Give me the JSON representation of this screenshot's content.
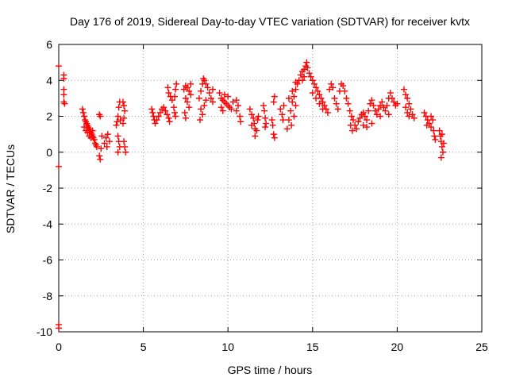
{
  "chart_data": {
    "type": "scatter",
    "title": "Day 176 of 2019, Sidereal Day-to-day VTEC variation (SDTVAR) for receiver kvtx",
    "xlabel": "GPS time / hours",
    "ylabel": "SDTVAR / TECUs",
    "xlim": [
      0,
      25
    ],
    "ylim": [
      -10,
      6
    ],
    "xticks": [
      0,
      5,
      10,
      15,
      20,
      25
    ],
    "yticks": [
      -10,
      -8,
      -6,
      -4,
      -2,
      0,
      2,
      4,
      6
    ],
    "xtick_labels": [
      "0",
      "5",
      "10",
      "15",
      "20",
      "25"
    ],
    "ytick_labels": [
      "-10",
      "-8",
      "-6",
      "-4",
      "-2",
      "0",
      "2",
      "4",
      "6"
    ],
    "grid": true,
    "marker": "plus",
    "color": "#ff0000",
    "series": [
      {
        "name": "SDTVAR",
        "points": [
          [
            0.0,
            4.8
          ],
          [
            0.0,
            -0.8
          ],
          [
            0.0,
            -9.6
          ],
          [
            0.0,
            -9.8
          ],
          [
            0.3,
            4.3
          ],
          [
            0.3,
            4.1
          ],
          [
            0.3,
            3.5
          ],
          [
            0.3,
            3.2
          ],
          [
            0.3,
            2.8
          ],
          [
            0.35,
            2.7
          ],
          [
            1.4,
            2.4
          ],
          [
            1.45,
            2.2
          ],
          [
            1.5,
            2.0
          ],
          [
            1.55,
            1.8
          ],
          [
            1.6,
            1.7
          ],
          [
            1.65,
            1.6
          ],
          [
            1.7,
            1.5
          ],
          [
            1.75,
            1.4
          ],
          [
            1.8,
            1.3
          ],
          [
            1.85,
            1.2
          ],
          [
            1.9,
            1.1
          ],
          [
            1.95,
            1.0
          ],
          [
            2.0,
            0.9
          ],
          [
            2.05,
            0.8
          ],
          [
            2.1,
            0.7
          ],
          [
            2.15,
            0.5
          ],
          [
            2.2,
            0.4
          ],
          [
            2.25,
            0.3
          ],
          [
            1.5,
            1.4
          ],
          [
            1.6,
            1.2
          ],
          [
            1.7,
            1.1
          ],
          [
            1.8,
            0.9
          ],
          [
            1.9,
            0.8
          ],
          [
            2.0,
            1.2
          ],
          [
            2.4,
            2.1
          ],
          [
            2.45,
            2.0
          ],
          [
            2.4,
            -0.2
          ],
          [
            2.45,
            -0.4
          ],
          [
            2.5,
            0.2
          ],
          [
            2.55,
            0.9
          ],
          [
            2.7,
            0.5
          ],
          [
            2.8,
            0.8
          ],
          [
            2.9,
            1.0
          ],
          [
            3.0,
            0.6
          ],
          [
            2.85,
            0.3
          ],
          [
            3.4,
            1.5
          ],
          [
            3.45,
            1.7
          ],
          [
            3.5,
            2.0
          ],
          [
            3.55,
            2.5
          ],
          [
            3.6,
            2.8
          ],
          [
            3.5,
            0.9
          ],
          [
            3.55,
            0.6
          ],
          [
            3.6,
            0.3
          ],
          [
            3.5,
            0.0
          ],
          [
            3.65,
            1.8
          ],
          [
            3.8,
            2.8
          ],
          [
            3.85,
            2.6
          ],
          [
            3.9,
            2.3
          ],
          [
            3.85,
            1.9
          ],
          [
            3.8,
            1.6
          ],
          [
            3.85,
            0.6
          ],
          [
            3.9,
            0.3
          ],
          [
            3.95,
            0.0
          ],
          [
            5.5,
            2.4
          ],
          [
            5.55,
            2.2
          ],
          [
            5.6,
            2.0
          ],
          [
            5.65,
            1.8
          ],
          [
            5.7,
            1.6
          ],
          [
            5.8,
            1.8
          ],
          [
            5.9,
            2.0
          ],
          [
            6.0,
            2.2
          ],
          [
            6.1,
            2.4
          ],
          [
            6.2,
            2.5
          ],
          [
            6.3,
            2.3
          ],
          [
            6.4,
            2.1
          ],
          [
            6.5,
            1.9
          ],
          [
            6.55,
            1.7
          ],
          [
            6.45,
            3.6
          ],
          [
            6.5,
            3.3
          ],
          [
            6.6,
            3.1
          ],
          [
            6.7,
            2.9
          ],
          [
            6.8,
            2.5
          ],
          [
            6.85,
            2.2
          ],
          [
            6.9,
            2.0
          ],
          [
            6.95,
            3.8
          ],
          [
            6.9,
            3.5
          ],
          [
            6.85,
            3.1
          ],
          [
            7.4,
            3.5
          ],
          [
            7.5,
            3.7
          ],
          [
            7.6,
            3.6
          ],
          [
            7.7,
            3.4
          ],
          [
            7.8,
            3.2
          ],
          [
            7.5,
            3.0
          ],
          [
            7.6,
            2.8
          ],
          [
            7.7,
            2.5
          ],
          [
            7.45,
            2.2
          ],
          [
            7.5,
            1.9
          ],
          [
            7.8,
            3.8
          ],
          [
            8.3,
            3.0
          ],
          [
            8.4,
            3.4
          ],
          [
            8.5,
            3.8
          ],
          [
            8.55,
            4.1
          ],
          [
            8.6,
            4.0
          ],
          [
            8.7,
            3.8
          ],
          [
            8.8,
            3.6
          ],
          [
            8.9,
            3.3
          ],
          [
            9.0,
            3.0
          ],
          [
            9.1,
            2.8
          ],
          [
            8.4,
            2.4
          ],
          [
            8.5,
            2.1
          ],
          [
            8.6,
            2.6
          ],
          [
            8.7,
            2.9
          ],
          [
            9.1,
            3.5
          ],
          [
            8.35,
            1.8
          ],
          [
            9.5,
            3.3
          ],
          [
            9.6,
            3.0
          ],
          [
            9.7,
            2.9
          ],
          [
            9.8,
            2.8
          ],
          [
            9.9,
            2.7
          ],
          [
            10.0,
            2.6
          ],
          [
            10.1,
            2.5
          ],
          [
            10.2,
            2.4
          ],
          [
            9.6,
            2.5
          ],
          [
            9.7,
            2.3
          ],
          [
            9.8,
            3.2
          ],
          [
            10.0,
            3.1
          ],
          [
            10.3,
            2.8
          ],
          [
            10.5,
            2.9
          ],
          [
            10.6,
            2.6
          ],
          [
            10.5,
            2.3
          ],
          [
            10.7,
            2.0
          ],
          [
            10.75,
            1.7
          ],
          [
            11.3,
            2.4
          ],
          [
            11.4,
            2.1
          ],
          [
            11.5,
            1.9
          ],
          [
            11.55,
            1.6
          ],
          [
            11.6,
            1.3
          ],
          [
            11.6,
            0.9
          ],
          [
            11.7,
            1.2
          ],
          [
            11.75,
            1.8
          ],
          [
            11.8,
            2.0
          ],
          [
            11.4,
            1.5
          ],
          [
            12.1,
            2.6
          ],
          [
            12.15,
            2.3
          ],
          [
            12.2,
            1.9
          ],
          [
            12.25,
            1.6
          ],
          [
            12.2,
            1.4
          ],
          [
            12.6,
            1.8
          ],
          [
            12.65,
            1.5
          ],
          [
            12.7,
            1.0
          ],
          [
            12.75,
            0.8
          ],
          [
            12.7,
            2.8
          ],
          [
            12.75,
            3.1
          ],
          [
            13.1,
            2.4
          ],
          [
            13.2,
            2.1
          ],
          [
            13.25,
            1.8
          ],
          [
            13.3,
            2.6
          ],
          [
            13.5,
            1.3
          ],
          [
            13.6,
            1.8
          ],
          [
            13.7,
            2.3
          ],
          [
            13.8,
            2.8
          ],
          [
            13.9,
            3.1
          ],
          [
            14.0,
            3.5
          ],
          [
            14.1,
            3.8
          ],
          [
            14.0,
            2.6
          ],
          [
            13.9,
            2.0
          ],
          [
            13.75,
            1.5
          ],
          [
            13.6,
            3.0
          ],
          [
            13.8,
            3.4
          ],
          [
            14.0,
            3.9
          ],
          [
            14.2,
            4.0
          ],
          [
            14.3,
            4.3
          ],
          [
            14.4,
            4.5
          ],
          [
            14.5,
            4.6
          ],
          [
            14.6,
            4.8
          ],
          [
            14.65,
            5.0
          ],
          [
            14.5,
            4.2
          ],
          [
            14.4,
            4.0
          ],
          [
            14.7,
            4.7
          ],
          [
            14.8,
            4.4
          ],
          [
            14.9,
            4.2
          ],
          [
            15.0,
            4.0
          ],
          [
            15.1,
            3.8
          ],
          [
            15.2,
            3.6
          ],
          [
            15.3,
            3.4
          ],
          [
            15.4,
            3.2
          ],
          [
            15.5,
            3.0
          ],
          [
            15.6,
            2.8
          ],
          [
            15.7,
            2.6
          ],
          [
            15.8,
            2.4
          ],
          [
            15.9,
            2.2
          ],
          [
            15.0,
            3.3
          ],
          [
            15.2,
            3.0
          ],
          [
            15.4,
            2.7
          ],
          [
            15.6,
            2.4
          ],
          [
            16.0,
            3.5
          ],
          [
            16.1,
            3.8
          ],
          [
            16.2,
            3.6
          ],
          [
            16.3,
            3.0
          ],
          [
            16.4,
            2.7
          ],
          [
            16.5,
            2.4
          ],
          [
            16.6,
            3.4
          ],
          [
            16.7,
            3.8
          ],
          [
            16.8,
            3.7
          ],
          [
            16.9,
            3.4
          ],
          [
            17.0,
            3.0
          ],
          [
            17.1,
            2.7
          ],
          [
            17.2,
            2.3
          ],
          [
            17.3,
            2.0
          ],
          [
            17.4,
            1.8
          ],
          [
            17.5,
            1.5
          ],
          [
            17.35,
            1.2
          ],
          [
            17.25,
            1.5
          ],
          [
            17.7,
            1.7
          ],
          [
            17.8,
            1.9
          ],
          [
            17.9,
            2.1
          ],
          [
            18.0,
            2.2
          ],
          [
            18.1,
            2.0
          ],
          [
            18.2,
            1.8
          ],
          [
            18.3,
            2.3
          ],
          [
            18.4,
            2.7
          ],
          [
            18.5,
            2.9
          ],
          [
            18.6,
            2.6
          ],
          [
            18.7,
            2.3
          ],
          [
            18.8,
            2.1
          ],
          [
            18.9,
            2.4
          ],
          [
            19.0,
            2.6
          ],
          [
            19.1,
            2.8
          ],
          [
            19.2,
            2.5
          ],
          [
            19.3,
            2.3
          ],
          [
            19.4,
            2.6
          ],
          [
            19.5,
            3.0
          ],
          [
            19.6,
            3.3
          ],
          [
            19.7,
            3.0
          ],
          [
            19.8,
            2.8
          ],
          [
            19.9,
            2.6
          ],
          [
            20.0,
            2.7
          ],
          [
            18.2,
            1.4
          ],
          [
            18.5,
            1.6
          ],
          [
            19.0,
            2.0
          ],
          [
            19.5,
            2.1
          ],
          [
            17.6,
            1.3
          ],
          [
            18.0,
            1.5
          ],
          [
            20.4,
            3.5
          ],
          [
            20.5,
            3.2
          ],
          [
            20.6,
            3.0
          ],
          [
            20.7,
            2.7
          ],
          [
            20.8,
            2.4
          ],
          [
            20.9,
            2.1
          ],
          [
            21.0,
            1.9
          ],
          [
            20.5,
            2.5
          ],
          [
            20.6,
            2.2
          ],
          [
            20.7,
            2.0
          ],
          [
            21.6,
            2.2
          ],
          [
            21.7,
            2.0
          ],
          [
            21.8,
            1.8
          ],
          [
            21.9,
            1.6
          ],
          [
            22.0,
            1.4
          ],
          [
            22.1,
            1.8
          ],
          [
            22.15,
            1.2
          ],
          [
            22.2,
            0.9
          ],
          [
            22.25,
            0.7
          ],
          [
            21.75,
            1.5
          ],
          [
            22.0,
            2.0
          ],
          [
            22.5,
            1.2
          ],
          [
            22.55,
            0.9
          ],
          [
            22.6,
            0.6
          ],
          [
            22.65,
            0.3
          ],
          [
            22.7,
            0.0
          ],
          [
            22.6,
            -0.3
          ],
          [
            22.65,
            1.0
          ],
          [
            22.75,
            0.5
          ]
        ]
      }
    ]
  }
}
